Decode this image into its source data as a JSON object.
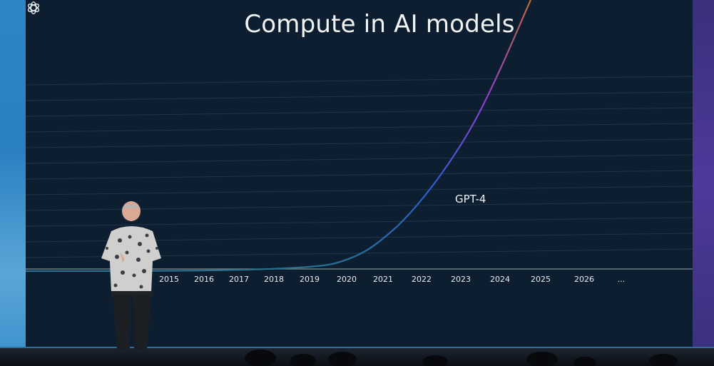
{
  "title": "Compute in AI models",
  "x_axis_years": [
    "2015",
    "2016",
    "2017",
    "2018",
    "2019",
    "2020",
    "2021",
    "2022",
    "2023",
    "2024",
    "2025",
    "2026",
    "..."
  ],
  "annotation": {
    "label": "GPT-4",
    "icon": "openai-logo-icon"
  },
  "colors": {
    "screen_background": "#0c1e30",
    "curve_start": "#2b5fd0",
    "curve_mid": "#8a3fd1",
    "curve_end": "#c0673a",
    "left_wall": "#2f86c4",
    "right_wall": "#3a2f7c"
  },
  "scene": {
    "speaker": "person-on-stage",
    "audience": "audience-silhouettes"
  }
}
